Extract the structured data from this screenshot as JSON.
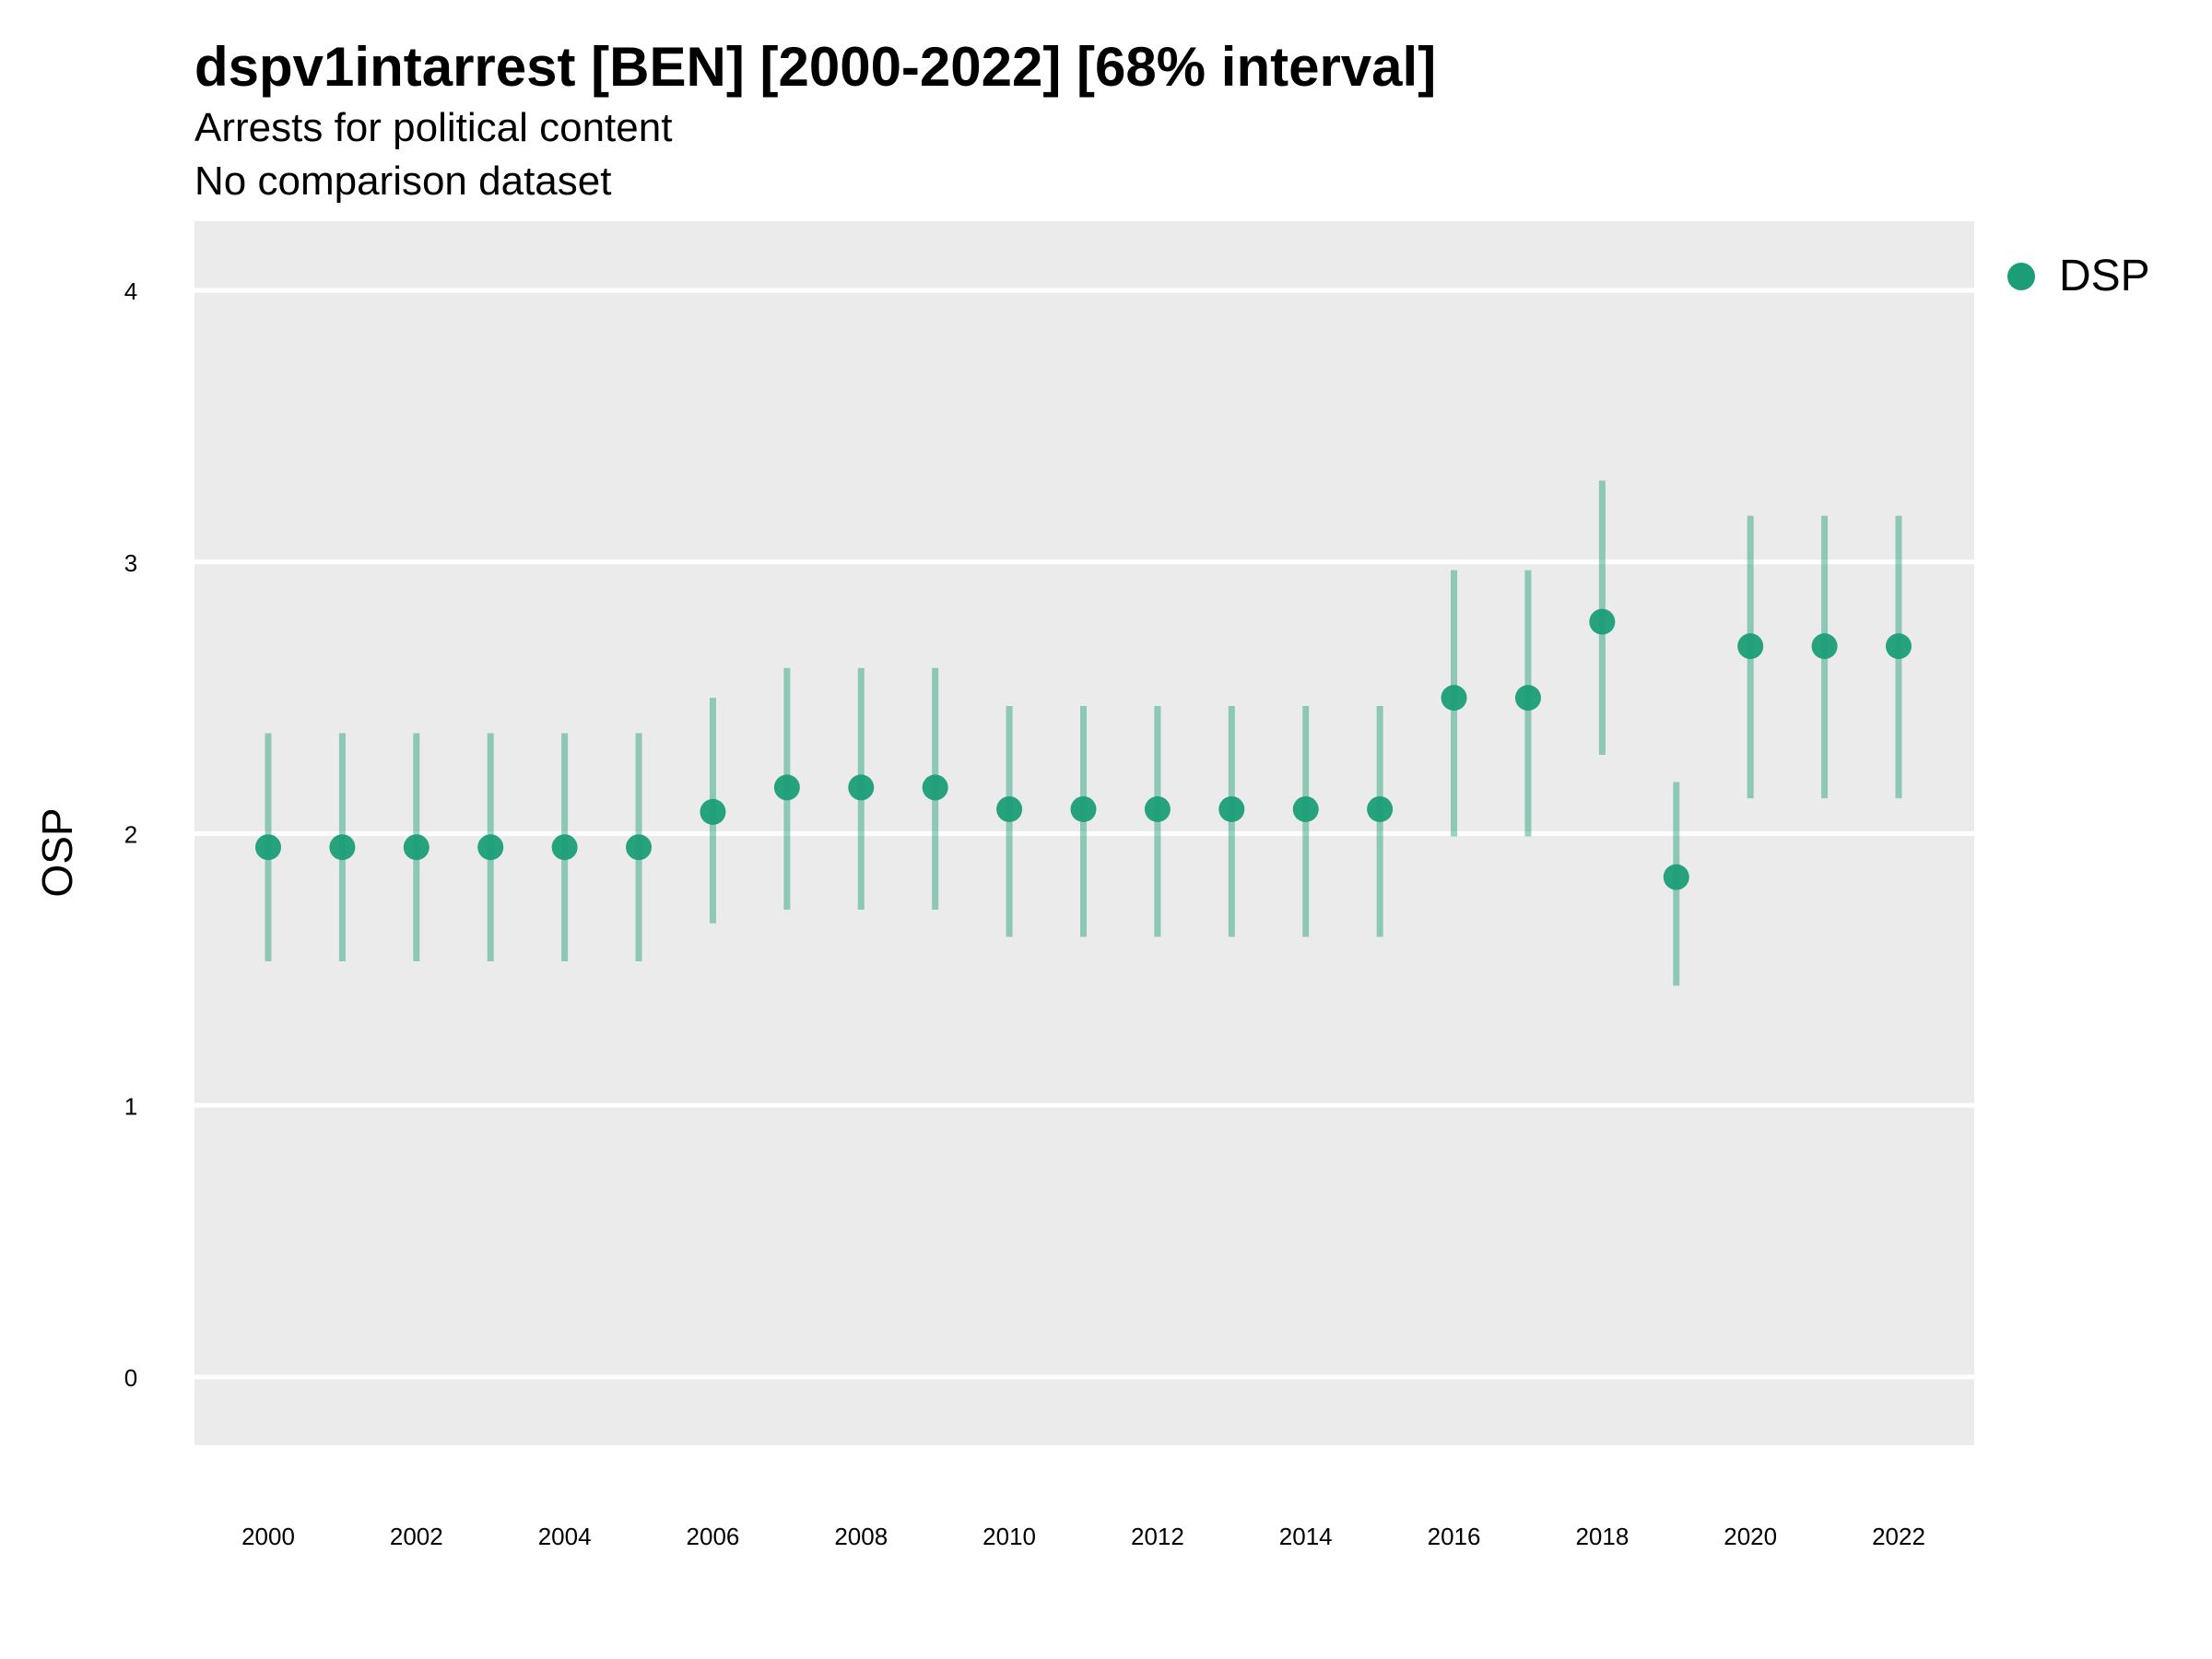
{
  "chart_data": {
    "type": "scatter",
    "title": "dspv1intarrest [BEN] [2000-2022] [68% interval]",
    "subtitle": "Arrests for political content",
    "subtitle2": "No comparison dataset",
    "xlabel": "",
    "ylabel": "OSP",
    "xlim": [
      1999,
      2023
    ],
    "ylim": [
      -0.25,
      4.25
    ],
    "x_ticks": [
      2000,
      2002,
      2004,
      2006,
      2008,
      2010,
      2012,
      2014,
      2016,
      2018,
      2020,
      2022
    ],
    "y_ticks": [
      0,
      1,
      2,
      3,
      4
    ],
    "grid": true,
    "legend_position": "right",
    "series": [
      {
        "name": "DSP",
        "color": "#1b9e77",
        "x": [
          2000,
          2001,
          2002,
          2003,
          2004,
          2005,
          2006,
          2007,
          2008,
          2009,
          2010,
          2011,
          2012,
          2013,
          2014,
          2015,
          2016,
          2017,
          2018,
          2019,
          2020,
          2021,
          2022
        ],
        "values": [
          1.95,
          1.95,
          1.95,
          1.95,
          1.95,
          1.95,
          2.08,
          2.17,
          2.17,
          2.17,
          2.09,
          2.09,
          2.09,
          2.09,
          2.09,
          2.09,
          2.5,
          2.5,
          2.78,
          1.84,
          2.69,
          2.69,
          2.69
        ],
        "lower": [
          1.53,
          1.53,
          1.53,
          1.53,
          1.53,
          1.53,
          1.67,
          1.72,
          1.72,
          1.72,
          1.62,
          1.62,
          1.62,
          1.62,
          1.62,
          1.62,
          1.99,
          1.99,
          2.29,
          1.44,
          2.13,
          2.13,
          2.13
        ],
        "upper": [
          2.37,
          2.37,
          2.37,
          2.37,
          2.37,
          2.37,
          2.5,
          2.61,
          2.61,
          2.61,
          2.47,
          2.47,
          2.47,
          2.47,
          2.47,
          2.47,
          2.97,
          2.97,
          3.3,
          2.19,
          3.17,
          3.17,
          3.17
        ]
      }
    ]
  }
}
